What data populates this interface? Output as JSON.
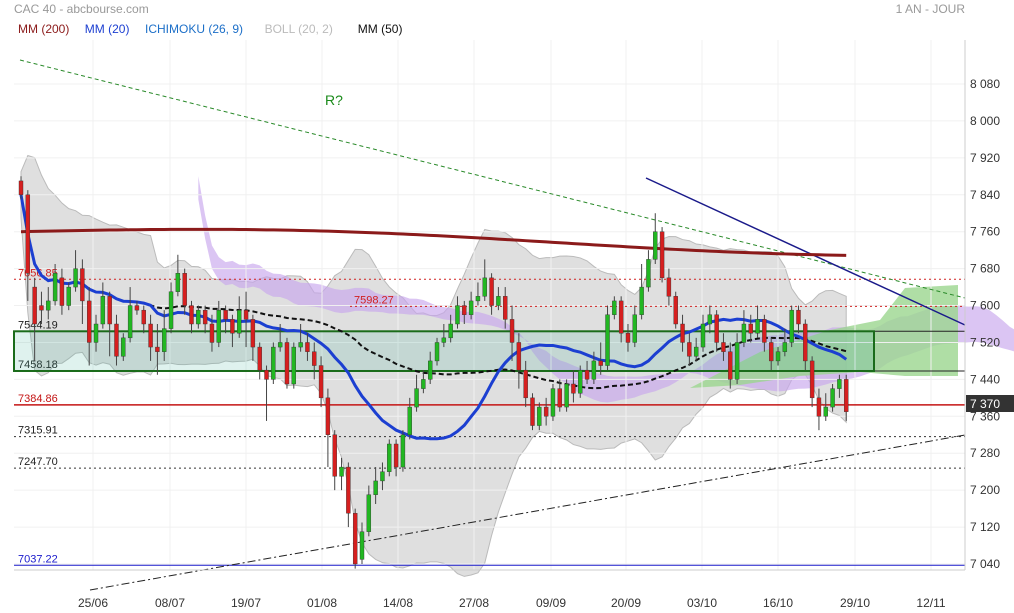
{
  "header": {
    "title": "CAC 40 - abcbourse.com",
    "period": "1 AN - JOUR"
  },
  "legend": [
    {
      "label": "MM (200)",
      "color": "#8b1a1a"
    },
    {
      "label": "MM (20)",
      "color": "#1c3fd1"
    },
    {
      "label": "ICHIMOKU (26, 9)",
      "color": "#1c6fc8"
    },
    {
      "label": "BOLL (20, 2)",
      "color": "#bbbbbb"
    },
    {
      "label": "MM (50)",
      "color": "#111111"
    }
  ],
  "annotations": {
    "r_label": "R?"
  },
  "current_price": "7 370",
  "colors": {
    "up": "#22b722",
    "down": "#d61f1f",
    "boll": "#d4d4d4",
    "cloud": "#c8a6ec",
    "cloud_green": "#9bd68f"
  },
  "chart_data": {
    "type": "candlestick",
    "ylim": [
      7000,
      8100
    ],
    "y_ticks": [
      "8 080",
      "8 000",
      "7 920",
      "7 840",
      "7 760",
      "7 680",
      "7 600",
      "7 520",
      "7 440",
      "7 360",
      "7 280",
      "7 200",
      "7 120",
      "7 040"
    ],
    "x_ticks": [
      "25/06",
      "08/07",
      "19/07",
      "01/08",
      "14/08",
      "27/08",
      "09/09",
      "20/09",
      "03/10",
      "16/10",
      "29/10",
      "12/11"
    ],
    "levels": [
      {
        "label": "7656.85",
        "value": 7656.85,
        "style": "dotted-red"
      },
      {
        "label": "7598.27",
        "value": 7598.27,
        "style": "dotted-red"
      },
      {
        "label": "7544.19",
        "value": 7544.19,
        "style": "solid-dark"
      },
      {
        "label": "7458.18",
        "value": 7458.18,
        "style": "solid-dark"
      },
      {
        "label": "7384.86",
        "value": 7384.86,
        "style": "solid-red"
      },
      {
        "label": "7315.91",
        "value": 7315.91,
        "style": "dotted-dark"
      },
      {
        "label": "7247.70",
        "value": 7247.7,
        "style": "dotted-dark"
      },
      {
        "label": "7037.22",
        "value": 7037.22,
        "style": "solid-blue"
      }
    ],
    "candles": [
      [
        7870,
        7840,
        7880,
        7830
      ],
      [
        7840,
        7670,
        7850,
        7610
      ],
      [
        7640,
        7560,
        7660,
        7480
      ],
      [
        7600,
        7590,
        7630,
        7560
      ],
      [
        7590,
        7610,
        7640,
        7570
      ],
      [
        7610,
        7670,
        7690,
        7600
      ],
      [
        7660,
        7600,
        7680,
        7580
      ],
      [
        7600,
        7640,
        7650,
        7590
      ],
      [
        7640,
        7680,
        7720,
        7630
      ],
      [
        7680,
        7610,
        7700,
        7560
      ],
      [
        7610,
        7520,
        7640,
        7470
      ],
      [
        7520,
        7560,
        7580,
        7500
      ],
      [
        7560,
        7620,
        7650,
        7550
      ],
      [
        7620,
        7560,
        7630,
        7490
      ],
      [
        7560,
        7490,
        7580,
        7470
      ],
      [
        7490,
        7530,
        7540,
        7480
      ],
      [
        7530,
        7600,
        7640,
        7520
      ],
      [
        7600,
        7590,
        7610,
        7580
      ],
      [
        7590,
        7560,
        7600,
        7540
      ],
      [
        7560,
        7510,
        7580,
        7480
      ],
      [
        7510,
        7500,
        7560,
        7450
      ],
      [
        7500,
        7550,
        7590,
        7480
      ],
      [
        7550,
        7630,
        7650,
        7540
      ],
      [
        7630,
        7670,
        7710,
        7620
      ],
      [
        7670,
        7600,
        7680,
        7580
      ],
      [
        7600,
        7560,
        7610,
        7540
      ],
      [
        7560,
        7590,
        7600,
        7550
      ],
      [
        7590,
        7560,
        7600,
        7540
      ],
      [
        7560,
        7520,
        7580,
        7500
      ],
      [
        7520,
        7590,
        7610,
        7510
      ],
      [
        7590,
        7570,
        7600,
        7540
      ],
      [
        7570,
        7540,
        7580,
        7510
      ],
      [
        7540,
        7590,
        7620,
        7530
      ],
      [
        7590,
        7570,
        7630,
        7510
      ],
      [
        7570,
        7510,
        7580,
        7480
      ],
      [
        7510,
        7460,
        7520,
        7440
      ],
      [
        7460,
        7440,
        7470,
        7350
      ],
      [
        7440,
        7510,
        7520,
        7430
      ],
      [
        7510,
        7520,
        7560,
        7500
      ],
      [
        7520,
        7430,
        7530,
        7420
      ],
      [
        7430,
        7510,
        7520,
        7420
      ],
      [
        7510,
        7520,
        7560,
        7500
      ],
      [
        7520,
        7500,
        7540,
        7480
      ],
      [
        7500,
        7470,
        7520,
        7440
      ],
      [
        7470,
        7400,
        7490,
        7380
      ],
      [
        7400,
        7320,
        7420,
        7250
      ],
      [
        7320,
        7230,
        7330,
        7200
      ],
      [
        7230,
        7250,
        7270,
        7200
      ],
      [
        7250,
        7150,
        7260,
        7120
      ],
      [
        7150,
        7040,
        7160,
        7030
      ],
      [
        7050,
        7110,
        7130,
        7040
      ],
      [
        7110,
        7190,
        7210,
        7100
      ],
      [
        7190,
        7220,
        7250,
        7170
      ],
      [
        7220,
        7240,
        7260,
        7200
      ],
      [
        7240,
        7300,
        7310,
        7230
      ],
      [
        7300,
        7250,
        7310,
        7230
      ],
      [
        7250,
        7320,
        7330,
        7240
      ],
      [
        7320,
        7380,
        7400,
        7310
      ],
      [
        7380,
        7420,
        7450,
        7370
      ],
      [
        7420,
        7440,
        7460,
        7410
      ],
      [
        7440,
        7480,
        7500,
        7430
      ],
      [
        7480,
        7520,
        7530,
        7470
      ],
      [
        7520,
        7530,
        7560,
        7510
      ],
      [
        7530,
        7560,
        7580,
        7520
      ],
      [
        7560,
        7600,
        7620,
        7550
      ],
      [
        7600,
        7580,
        7610,
        7560
      ],
      [
        7580,
        7610,
        7630,
        7570
      ],
      [
        7610,
        7620,
        7650,
        7600
      ],
      [
        7620,
        7660,
        7700,
        7610
      ],
      [
        7660,
        7600,
        7670,
        7580
      ],
      [
        7600,
        7620,
        7640,
        7590
      ],
      [
        7620,
        7570,
        7640,
        7550
      ],
      [
        7570,
        7520,
        7600,
        7480
      ],
      [
        7520,
        7460,
        7540,
        7420
      ],
      [
        7460,
        7400,
        7480,
        7380
      ],
      [
        7400,
        7340,
        7410,
        7330
      ],
      [
        7340,
        7380,
        7390,
        7330
      ],
      [
        7380,
        7360,
        7400,
        7340
      ],
      [
        7360,
        7420,
        7430,
        7350
      ],
      [
        7420,
        7380,
        7440,
        7370
      ],
      [
        7380,
        7430,
        7440,
        7370
      ],
      [
        7430,
        7410,
        7460,
        7390
      ],
      [
        7410,
        7460,
        7470,
        7400
      ],
      [
        7460,
        7440,
        7480,
        7430
      ],
      [
        7440,
        7480,
        7500,
        7430
      ],
      [
        7480,
        7470,
        7520,
        7450
      ],
      [
        7470,
        7580,
        7600,
        7460
      ],
      [
        7580,
        7610,
        7620,
        7570
      ],
      [
        7610,
        7540,
        7620,
        7520
      ],
      [
        7540,
        7520,
        7560,
        7500
      ],
      [
        7520,
        7580,
        7600,
        7510
      ],
      [
        7580,
        7640,
        7690,
        7570
      ],
      [
        7640,
        7700,
        7720,
        7630
      ],
      [
        7700,
        7760,
        7800,
        7690
      ],
      [
        7760,
        7660,
        7770,
        7650
      ],
      [
        7660,
        7620,
        7680,
        7600
      ],
      [
        7620,
        7560,
        7630,
        7550
      ],
      [
        7560,
        7520,
        7580,
        7500
      ],
      [
        7520,
        7490,
        7540,
        7470
      ],
      [
        7490,
        7510,
        7530,
        7480
      ],
      [
        7510,
        7560,
        7580,
        7500
      ],
      [
        7560,
        7580,
        7600,
        7540
      ],
      [
        7580,
        7520,
        7590,
        7500
      ],
      [
        7520,
        7500,
        7540,
        7480
      ],
      [
        7500,
        7440,
        7520,
        7420
      ],
      [
        7440,
        7520,
        7540,
        7430
      ],
      [
        7520,
        7560,
        7590,
        7510
      ],
      [
        7560,
        7540,
        7580,
        7520
      ],
      [
        7540,
        7570,
        7600,
        7530
      ],
      [
        7570,
        7520,
        7580,
        7500
      ],
      [
        7520,
        7480,
        7530,
        7460
      ],
      [
        7480,
        7500,
        7510,
        7470
      ],
      [
        7500,
        7520,
        7550,
        7490
      ],
      [
        7520,
        7590,
        7600,
        7510
      ],
      [
        7590,
        7560,
        7600,
        7540
      ],
      [
        7560,
        7480,
        7570,
        7460
      ],
      [
        7480,
        7400,
        7490,
        7380
      ],
      [
        7400,
        7360,
        7420,
        7330
      ],
      [
        7360,
        7380,
        7410,
        7350
      ],
      [
        7380,
        7420,
        7430,
        7370
      ],
      [
        7420,
        7440,
        7450,
        7400
      ],
      [
        7440,
        7370,
        7450,
        7350
      ]
    ]
  }
}
